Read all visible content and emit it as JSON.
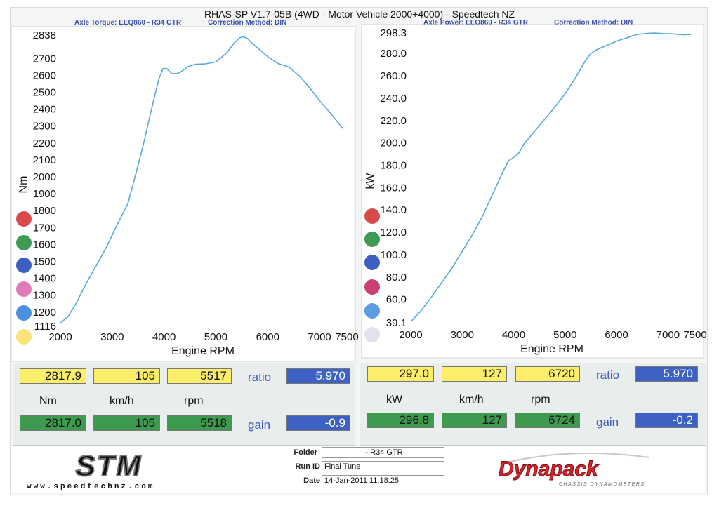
{
  "header": {
    "title": "RHAS-SP V1.7-05B  (4WD - Motor Vehicle 2000+4000) - Speedtech NZ",
    "left_sub": "Axle Torque: EEQ860 - R34 GTR",
    "left_corr": "Correction Method: DIN",
    "right_sub": "Axle Power: EEQ860 - R34 GTR",
    "right_corr": "Correction Method: DIN"
  },
  "chart_data": [
    {
      "type": "line",
      "ylabel": "Nm",
      "xlabel": "Engine RPM",
      "xlim": [
        2000,
        7500
      ],
      "ylim": [
        1116,
        2838
      ],
      "x_ticks": [
        "2000",
        "3000",
        "4000",
        "5000",
        "6000",
        "7000",
        "7500"
      ],
      "y_ticks": [
        "2838",
        "2700",
        "2600",
        "2500",
        "2400",
        "2300",
        "2200",
        "2100",
        "2000",
        "1900",
        "1800",
        "1700",
        "1600",
        "1500",
        "1400",
        "1300",
        "1200",
        "1116"
      ],
      "series": [
        {
          "color": "#55a9e0",
          "x": [
            2000,
            2150,
            2300,
            2500,
            2700,
            2900,
            3100,
            3300,
            3450,
            3600,
            3750,
            3900,
            3980,
            4050,
            4150,
            4250,
            4350,
            4450,
            4600,
            4800,
            5000,
            5200,
            5350,
            5450,
            5520,
            5600,
            5700,
            5850,
            6000,
            6200,
            6400,
            6600,
            6800,
            7000,
            7200,
            7400,
            7450
          ],
          "y": [
            1135,
            1175,
            1250,
            1370,
            1480,
            1590,
            1720,
            1840,
            2010,
            2190,
            2390,
            2580,
            2640,
            2640,
            2610,
            2610,
            2625,
            2650,
            2665,
            2668,
            2680,
            2730,
            2790,
            2820,
            2828,
            2820,
            2790,
            2750,
            2710,
            2670,
            2650,
            2600,
            2530,
            2450,
            2380,
            2305,
            2285
          ]
        }
      ]
    },
    {
      "type": "line",
      "ylabel": "kW",
      "xlabel": "Engine RPM",
      "xlim": [
        2000,
        7500
      ],
      "ylim": [
        39.1,
        298.3
      ],
      "x_ticks": [
        "2000",
        "3000",
        "4000",
        "5000",
        "6000",
        "7000",
        "7500"
      ],
      "y_ticks": [
        "298.3",
        "280.0",
        "260.0",
        "240.0",
        "220.0",
        "200.0",
        "180.0",
        "160.0",
        "140.0",
        "120.0",
        "100.0",
        "80.0",
        "60.0",
        "39.1"
      ],
      "series": [
        {
          "color": "#55a9e0",
          "x": [
            2000,
            2200,
            2400,
            2600,
            2800,
            3000,
            3200,
            3400,
            3600,
            3800,
            3900,
            4000,
            4100,
            4200,
            4400,
            4600,
            4800,
            5000,
            5200,
            5400,
            5500,
            5600,
            5800,
            6000,
            6200,
            6400,
            6600,
            6720,
            6900,
            7100,
            7300,
            7450
          ],
          "y": [
            40,
            50,
            62,
            75,
            88,
            103,
            118,
            135,
            155,
            175,
            184,
            187,
            191,
            199,
            210,
            221,
            232,
            244,
            258,
            274,
            280,
            283,
            287,
            291,
            294,
            297,
            298,
            298.3,
            297.8,
            297.5,
            296.8,
            297.0
          ]
        }
      ]
    }
  ],
  "legend_dots": {
    "left": [
      "#d94b4b",
      "#3f9a56",
      "#3d5fc2",
      "#e07ab8",
      "#4a8fe0",
      "#fbe27a"
    ],
    "right": [
      "#d94b4b",
      "#3f9a56",
      "#3d5fc2",
      "#cc3f74",
      "#5a9de6",
      "#e2e2ee"
    ]
  },
  "left_panel": {
    "top_values": [
      "2817.9",
      "105",
      "5517"
    ],
    "units": [
      "Nm",
      "km/h",
      "rpm"
    ],
    "bottom_values": [
      "2817.0",
      "105",
      "5518"
    ],
    "ratio_label": "ratio",
    "ratio_value": "5.970",
    "gain_label": "gain",
    "gain_value": "-0.9"
  },
  "right_panel": {
    "top_values": [
      "297.0",
      "127",
      "6720"
    ],
    "units": [
      "kW",
      "km/h",
      "rpm"
    ],
    "bottom_values": [
      "296.8",
      "127",
      "6724"
    ],
    "ratio_label": "ratio",
    "ratio_value": "5.970",
    "gain_label": "gain",
    "gain_value": "-0.2"
  },
  "footer": {
    "logo_left": "STM",
    "website": "www.speedtechnz.com",
    "folder_label": "Folder",
    "folder_value": "- R34 GTR",
    "runid_label": "Run ID",
    "runid_value": "Final Tune",
    "date_label": "Date",
    "date_value": "14-Jan-2011  11:18:25",
    "logo_right": "Dynapack",
    "logo_right_sub": "CHASSIS DYNAMOMETERS"
  }
}
